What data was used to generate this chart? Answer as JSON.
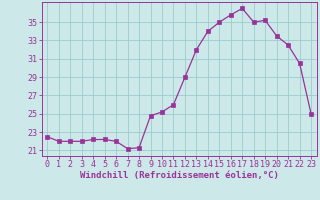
{
  "x": [
    0,
    1,
    2,
    3,
    4,
    5,
    6,
    7,
    8,
    9,
    10,
    11,
    12,
    13,
    14,
    15,
    16,
    17,
    18,
    19,
    20,
    21,
    22,
    23
  ],
  "y": [
    22.5,
    22.0,
    22.0,
    22.0,
    22.2,
    22.2,
    22.0,
    21.2,
    21.3,
    24.8,
    25.2,
    26.0,
    29.0,
    32.0,
    34.0,
    35.0,
    35.8,
    36.5,
    35.0,
    35.2,
    33.5,
    32.5,
    30.5,
    25.0
  ],
  "line_color": "#993399",
  "marker": "s",
  "marker_size": 2.5,
  "bg_color": "#cce8e8",
  "grid_color": "#99cccc",
  "xlabel": "Windchill (Refroidissement éolien,°C)",
  "xlabel_color": "#993399",
  "ytick_labels": [
    "21",
    "23",
    "25",
    "27",
    "29",
    "31",
    "33",
    "35"
  ],
  "ytick_vals": [
    21,
    23,
    25,
    27,
    29,
    31,
    33,
    35
  ],
  "ylim": [
    20.4,
    37.2
  ],
  "xlim": [
    -0.5,
    23.5
  ],
  "tick_color": "#993399",
  "axis_color": "#993399",
  "tick_fontsize": 6.0,
  "xlabel_fontsize": 6.5
}
